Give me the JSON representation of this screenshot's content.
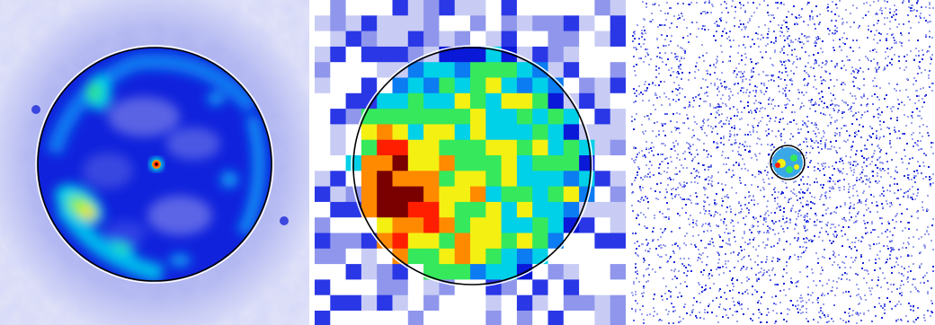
{
  "figure": {
    "panels": [
      {
        "id": "smoothed-map",
        "description_kind": "smoothed x-ray intensity map with circular aperture",
        "colormap": [
          "#ffffff",
          "#c8ccf4",
          "#8f96ec",
          "#2a37e6",
          "#0a18d8",
          "#0b7cf2",
          "#00d0e8",
          "#36e85c",
          "#f4f012",
          "#ff8a00",
          "#ff1e00",
          "#7a0000",
          "#000000"
        ]
      },
      {
        "id": "binned-map",
        "description_kind": "coarsely binned x-ray intensity map with circular aperture",
        "colormap": [
          "#ffffff",
          "#c8ccf4",
          "#8f96ec",
          "#2a37e6",
          "#0a18d8",
          "#0b7cf2",
          "#00d0e8",
          "#36e85c",
          "#f4f012",
          "#ff8a00",
          "#ff1e00",
          "#7a0000",
          "#000000"
        ]
      },
      {
        "id": "wide-field-map",
        "description_kind": "wide-field pixel map with small circular aperture",
        "colormap": [
          "#ffffff",
          "#c8ccf4",
          "#8f96ec",
          "#2a37e6",
          "#0a18d8",
          "#0b7cf2",
          "#00d0e8",
          "#36e85c",
          "#f4f012",
          "#ff8a00",
          "#ff1e00",
          "#7a0000",
          "#000000"
        ]
      }
    ]
  }
}
